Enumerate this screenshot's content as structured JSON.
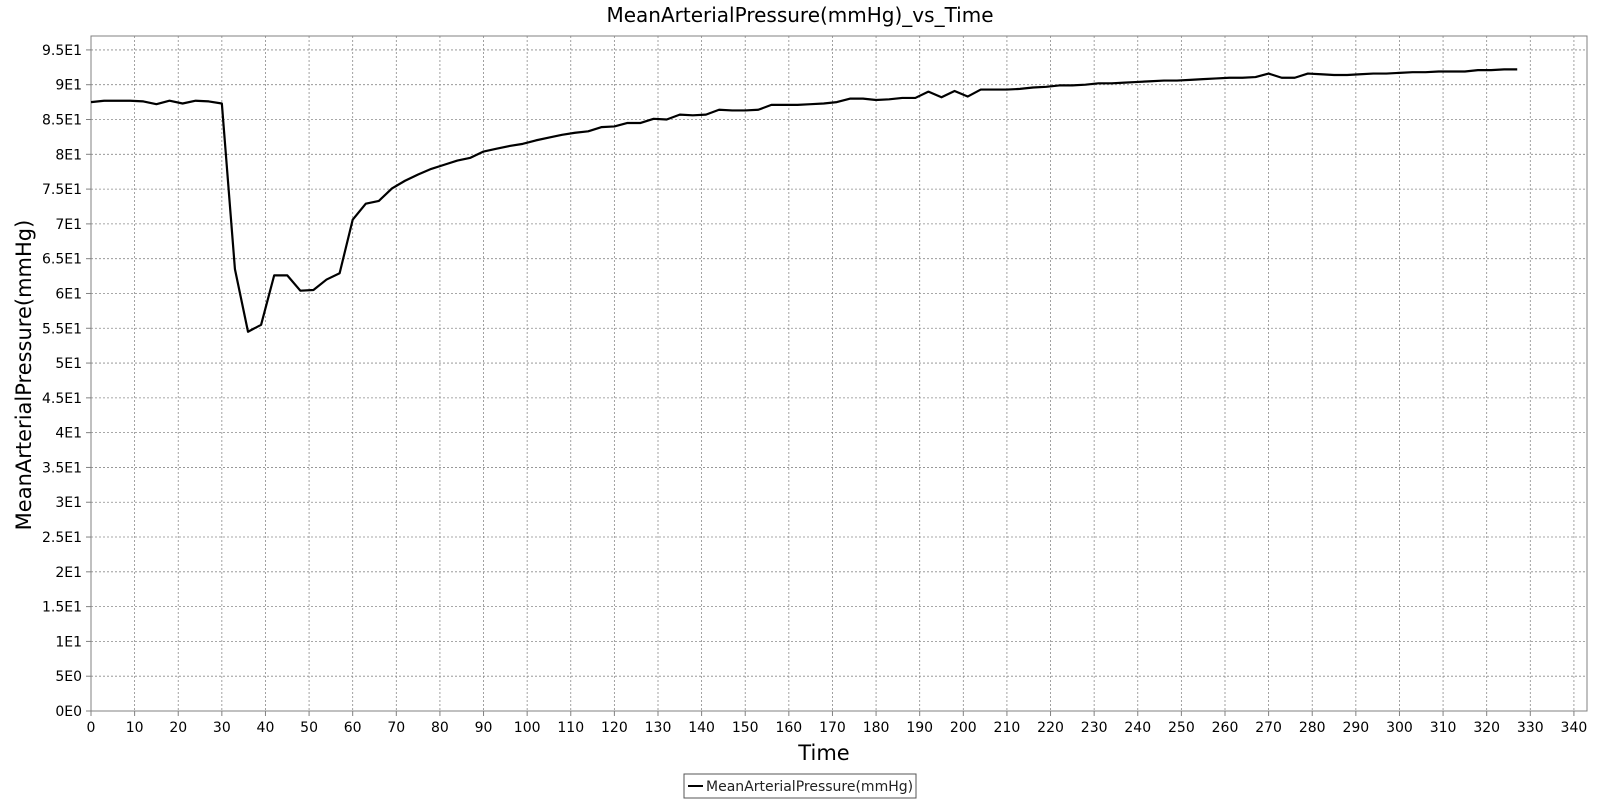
{
  "chart_data": {
    "type": "line",
    "title": "MeanArterialPressure(mmHg)_vs_Time",
    "xlabel": "Time",
    "ylabel": "MeanArterialPressure(mmHg)",
    "xlim": [
      0,
      343
    ],
    "ylim": [
      0,
      97
    ],
    "x_ticks": [
      0,
      10,
      20,
      30,
      40,
      50,
      60,
      70,
      80,
      90,
      100,
      110,
      120,
      130,
      140,
      150,
      160,
      170,
      180,
      190,
      200,
      210,
      220,
      230,
      240,
      250,
      260,
      270,
      280,
      290,
      300,
      310,
      320,
      330,
      340
    ],
    "x_tick_labels": [
      "0",
      "10",
      "20",
      "30",
      "40",
      "50",
      "60",
      "70",
      "80",
      "90",
      "100",
      "110",
      "120",
      "130",
      "140",
      "150",
      "160",
      "170",
      "180",
      "190",
      "200",
      "210",
      "220",
      "230",
      "240",
      "250",
      "260",
      "270",
      "280",
      "290",
      "300",
      "310",
      "320",
      "330",
      "340"
    ],
    "y_ticks": [
      0,
      5,
      10,
      15,
      20,
      25,
      30,
      35,
      40,
      45,
      50,
      55,
      60,
      65,
      70,
      75,
      80,
      85,
      90,
      95
    ],
    "y_tick_labels": [
      "0E0",
      "5E0",
      "1E1",
      "1.5E1",
      "2E1",
      "2.5E1",
      "3E1",
      "3.5E1",
      "4E1",
      "4.5E1",
      "5E1",
      "5.5E1",
      "6E1",
      "6.5E1",
      "7E1",
      "7.5E1",
      "8E1",
      "8.5E1",
      "9E1",
      "9.5E1"
    ],
    "grid": true,
    "legend_position": "bottom-center",
    "series": [
      {
        "name": "MeanArterialPressure(mmHg)",
        "color": "#000000",
        "x": [
          0,
          3,
          6,
          9,
          12,
          15,
          18,
          21,
          24,
          27,
          30,
          33,
          36,
          39,
          42,
          45,
          48,
          51,
          54,
          57,
          60,
          63,
          66,
          69,
          72,
          75,
          78,
          81,
          84,
          87,
          90,
          93,
          96,
          99,
          102,
          105,
          108,
          111,
          114,
          117,
          120,
          123,
          126,
          129,
          132,
          135,
          138,
          141,
          144,
          147,
          150,
          153,
          156,
          159,
          162,
          165,
          168,
          171,
          174,
          177,
          180,
          183,
          186,
          189,
          192,
          195,
          198,
          201,
          204,
          207,
          210,
          213,
          216,
          219,
          222,
          225,
          228,
          231,
          234,
          237,
          240,
          243,
          246,
          249,
          252,
          255,
          258,
          261,
          264,
          267,
          270,
          273,
          276,
          279,
          282,
          285,
          288,
          291,
          294,
          297,
          300,
          303,
          306,
          309,
          312,
          315,
          318,
          321,
          324,
          327
        ],
        "values": [
          87.5,
          87.7,
          87.7,
          87.7,
          87.6,
          87.2,
          87.7,
          87.3,
          87.7,
          87.6,
          87.3,
          63.5,
          54.5,
          55.5,
          62.6,
          62.6,
          60.4,
          60.5,
          62.0,
          62.9,
          70.6,
          72.9,
          73.3,
          75.1,
          76.2,
          77.1,
          77.9,
          78.5,
          79.1,
          79.5,
          80.4,
          80.8,
          81.2,
          81.5,
          82.0,
          82.4,
          82.8,
          83.1,
          83.3,
          83.9,
          84.0,
          84.5,
          84.5,
          85.1,
          85.0,
          85.7,
          85.6,
          85.7,
          86.4,
          86.3,
          86.3,
          86.4,
          87.1,
          87.1,
          87.1,
          87.2,
          87.3,
          87.5,
          88.0,
          88.0,
          87.8,
          87.9,
          88.1,
          88.1,
          89.0,
          88.2,
          89.1,
          88.3,
          89.3,
          89.3,
          89.3,
          89.4,
          89.6,
          89.7,
          89.9,
          89.9,
          90.0,
          90.2,
          90.2,
          90.3,
          90.4,
          90.5,
          90.6,
          90.6,
          90.7,
          90.8,
          90.9,
          91.0,
          91.0,
          91.1,
          91.6,
          91.0,
          91.0,
          91.6,
          91.5,
          91.4,
          91.4,
          91.5,
          91.6,
          91.6,
          91.7,
          91.8,
          91.8,
          91.9,
          91.9,
          91.9,
          92.1,
          92.1,
          92.2,
          92.2
        ]
      }
    ]
  }
}
